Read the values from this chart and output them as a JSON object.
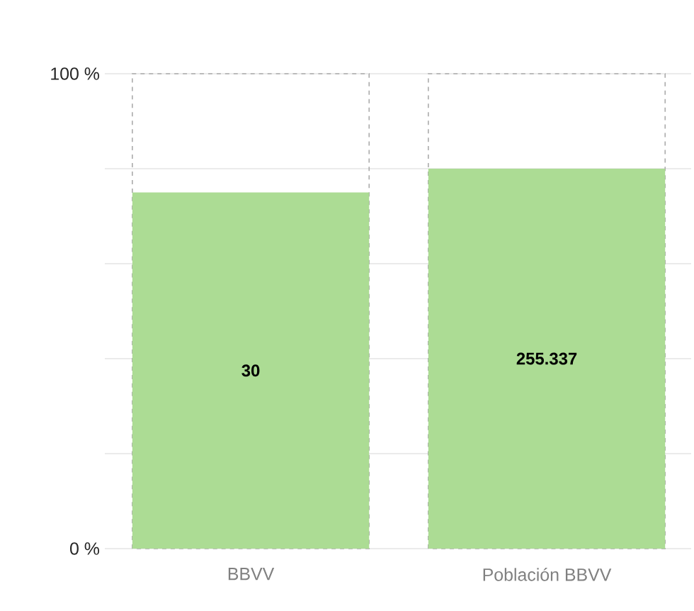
{
  "chart_data": {
    "type": "bar",
    "categories": [
      "BBVV",
      "Población BBVV"
    ],
    "values": [
      75,
      80
    ],
    "color": "#acdc94",
    "annotations": [
      "30",
      "255.337"
    ],
    "ylim": [
      0,
      100
    ],
    "yticks": [
      {
        "value": 0,
        "label": "0 %"
      },
      {
        "value": 20,
        "label": null
      },
      {
        "value": 40,
        "label": null
      },
      {
        "value": 60,
        "label": null
      },
      {
        "value": 80,
        "label": null
      },
      {
        "value": 100,
        "label": "100 %"
      }
    ],
    "grid": "y"
  }
}
